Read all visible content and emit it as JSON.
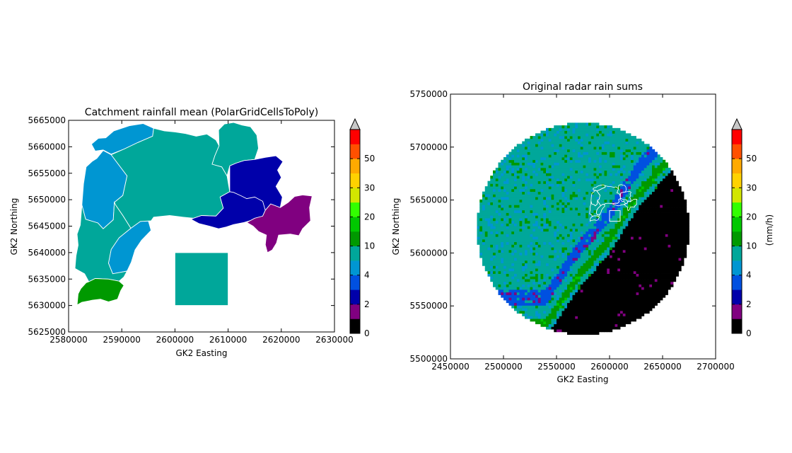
{
  "colormap": {
    "levels": [
      0,
      1,
      2,
      3,
      4,
      5,
      10,
      15,
      20,
      25,
      30,
      40,
      50,
      60
    ],
    "colors": [
      "#000000",
      "#800080",
      "#0000aa",
      "#0050e0",
      "#0096d2",
      "#00a79a",
      "#009900",
      "#00c800",
      "#32ff00",
      "#d2e600",
      "#ffd200",
      "#ffaa00",
      "#ff5000",
      "#ff0000",
      "#cc0000"
    ],
    "over_color": "#c8c8c8",
    "tick_labels": [
      "0",
      "2",
      "4",
      "10",
      "20",
      "30",
      "50"
    ]
  },
  "chart_data": [
    {
      "type": "choropleth",
      "title": "Catchment rainfall mean (PolarGridCellsToPoly)",
      "xlabel": "GK2 Easting",
      "ylabel": "GK2 Northing",
      "xlim": [
        2580000,
        2630000
      ],
      "ylim": [
        5625000,
        5665000
      ],
      "x_ticks": [
        "2580000",
        "2590000",
        "2600000",
        "2610000",
        "2620000",
        "2630000"
      ],
      "y_ticks": [
        "5625000",
        "5630000",
        "5635000",
        "5640000",
        "5645000",
        "5650000",
        "5655000",
        "5660000",
        "5665000"
      ],
      "catchments": [
        {
          "color": "#0096d2",
          "coords": [
            [
              2582800,
              5653000
            ],
            [
              2583300,
              5656200
            ],
            [
              2584500,
              5657300
            ],
            [
              2585300,
              5657800
            ],
            [
              2586500,
              5659300
            ],
            [
              2588000,
              5658500
            ],
            [
              2591000,
              5654500
            ],
            [
              2590200,
              5650800
            ],
            [
              2588600,
              5649500
            ],
            [
              2588400,
              5646200
            ],
            [
              2586500,
              5644500
            ],
            [
              2585500,
              5645600
            ],
            [
              2583200,
              5646300
            ],
            [
              2582500,
              5649000
            ]
          ]
        },
        {
          "color": "#0096d2",
          "coords": [
            [
              2584300,
              5660500
            ],
            [
              2585600,
              5661600
            ],
            [
              2587000,
              5661700
            ],
            [
              2588500,
              5663000
            ],
            [
              2590000,
              5663500
            ],
            [
              2591500,
              5664000
            ],
            [
              2594000,
              5664400
            ],
            [
              2596000,
              5663500
            ],
            [
              2595800,
              5662000
            ],
            [
              2593000,
              5660800
            ],
            [
              2590500,
              5659600
            ],
            [
              2588000,
              5658600
            ],
            [
              2586500,
              5659400
            ],
            [
              2585000,
              5659200
            ]
          ]
        },
        {
          "color": "#0096d2",
          "coords": [
            [
              2587500,
              5638000
            ],
            [
              2588000,
              5640600
            ],
            [
              2589500,
              5642800
            ],
            [
              2591700,
              5644600
            ],
            [
              2593500,
              5645900
            ],
            [
              2595000,
              5646000
            ],
            [
              2595500,
              5644200
            ],
            [
              2593700,
              5642300
            ],
            [
              2592500,
              5640500
            ],
            [
              2591800,
              5638200
            ],
            [
              2591000,
              5636500
            ],
            [
              2588300,
              5636000
            ]
          ]
        },
        {
          "color": "#00a79a",
          "coords": [
            [
              2596000,
              5663500
            ],
            [
              2598000,
              5663000
            ],
            [
              2600000,
              5662800
            ],
            [
              2602000,
              5662500
            ],
            [
              2604000,
              5662000
            ],
            [
              2606000,
              5662400
            ],
            [
              2607700,
              5661300
            ],
            [
              2608300,
              5660200
            ],
            [
              2607500,
              5658300
            ],
            [
              2607000,
              5656700
            ],
            [
              2608800,
              5656200
            ],
            [
              2609800,
              5654500
            ],
            [
              2610300,
              5651500
            ],
            [
              2608500,
              5650500
            ],
            [
              2609100,
              5648400
            ],
            [
              2607700,
              5646900
            ],
            [
              2605000,
              5647000
            ],
            [
              2603500,
              5646500
            ],
            [
              2601500,
              5646700
            ],
            [
              2599000,
              5647000
            ],
            [
              2596000,
              5646700
            ],
            [
              2595500,
              5646000
            ],
            [
              2593500,
              5645900
            ],
            [
              2591700,
              5644600
            ],
            [
              2590200,
              5647000
            ],
            [
              2588900,
              5648900
            ],
            [
              2588600,
              5649500
            ],
            [
              2590200,
              5650800
            ],
            [
              2591000,
              5654500
            ],
            [
              2588000,
              5658500
            ],
            [
              2590500,
              5659600
            ],
            [
              2593000,
              5660800
            ],
            [
              2595800,
              5662000
            ]
          ]
        },
        {
          "color": "#00a79a",
          "coords": [
            [
              2582500,
              5649000
            ],
            [
              2583200,
              5646300
            ],
            [
              2585500,
              5645600
            ],
            [
              2586500,
              5644500
            ],
            [
              2588400,
              5646200
            ],
            [
              2588600,
              5649500
            ],
            [
              2588900,
              5648900
            ],
            [
              2590200,
              5647000
            ],
            [
              2591700,
              5644600
            ],
            [
              2589500,
              5642800
            ],
            [
              2588000,
              5640600
            ],
            [
              2587500,
              5638000
            ],
            [
              2588300,
              5636000
            ],
            [
              2591000,
              5636500
            ],
            [
              2590400,
              5635400
            ],
            [
              2589500,
              5634600
            ],
            [
              2587500,
              5635000
            ],
            [
              2585000,
              5635100
            ],
            [
              2583800,
              5634500
            ],
            [
              2583000,
              5636000
            ],
            [
              2581200,
              5637000
            ],
            [
              2581400,
              5639400
            ],
            [
              2581800,
              5641400
            ],
            [
              2581600,
              5643500
            ],
            [
              2582200,
              5645200
            ]
          ]
        },
        {
          "color": "#00a79a",
          "coords": [
            [
              2608300,
              5660200
            ],
            [
              2608200,
              5663200
            ],
            [
              2609300,
              5664300
            ],
            [
              2611000,
              5664600
            ],
            [
              2612600,
              5664100
            ],
            [
              2614200,
              5663800
            ],
            [
              2615400,
              5662200
            ],
            [
              2615700,
              5659700
            ],
            [
              2615000,
              5657600
            ],
            [
              2613000,
              5657400
            ],
            [
              2611500,
              5656900
            ],
            [
              2610300,
              5656400
            ],
            [
              2609800,
              5654500
            ],
            [
              2608800,
              5656200
            ],
            [
              2607000,
              5656700
            ],
            [
              2607500,
              5658300
            ]
          ]
        },
        {
          "color": "#00a79a",
          "coords": [
            [
              2600000,
              5630000
            ],
            [
              2610000,
              5630000
            ],
            [
              2610000,
              5640000
            ],
            [
              2600000,
              5640000
            ]
          ]
        },
        {
          "color": "#0000aa",
          "coords": [
            [
              2610300,
              5656400
            ],
            [
              2611500,
              5656900
            ],
            [
              2613000,
              5657400
            ],
            [
              2615000,
              5657600
            ],
            [
              2617000,
              5658000
            ],
            [
              2619000,
              5658300
            ],
            [
              2620300,
              5657200
            ],
            [
              2619300,
              5655600
            ],
            [
              2620000,
              5654200
            ],
            [
              2619000,
              5652500
            ],
            [
              2620200,
              5650500
            ],
            [
              2619800,
              5648500
            ],
            [
              2618000,
              5649200
            ],
            [
              2617000,
              5648000
            ],
            [
              2616500,
              5646900
            ],
            [
              2615000,
              5646500
            ],
            [
              2613500,
              5648900
            ],
            [
              2612000,
              5648500
            ],
            [
              2610500,
              5650000
            ],
            [
              2610300,
              5651500
            ]
          ]
        },
        {
          "color": "#0000aa",
          "coords": [
            [
              2603000,
              5646300
            ],
            [
              2604500,
              5645500
            ],
            [
              2606500,
              5645000
            ],
            [
              2608200,
              5644500
            ],
            [
              2609500,
              5644800
            ],
            [
              2611000,
              5645300
            ],
            [
              2613000,
              5645700
            ],
            [
              2615000,
              5646300
            ],
            [
              2616500,
              5646900
            ],
            [
              2617000,
              5648000
            ],
            [
              2616500,
              5649700
            ],
            [
              2615000,
              5650500
            ],
            [
              2613500,
              5650200
            ],
            [
              2612500,
              5650700
            ],
            [
              2611000,
              5651400
            ],
            [
              2610300,
              5651500
            ],
            [
              2608500,
              5650500
            ],
            [
              2609100,
              5648400
            ],
            [
              2607700,
              5646900
            ],
            [
              2605000,
              5647000
            ],
            [
              2603500,
              5646500
            ]
          ]
        },
        {
          "color": "#800080",
          "coords": [
            [
              2613500,
              5645700
            ],
            [
              2614700,
              5645000
            ],
            [
              2615700,
              5644000
            ],
            [
              2617200,
              5643300
            ],
            [
              2617000,
              5641500
            ],
            [
              2617400,
              5640000
            ],
            [
              2618300,
              5640500
            ],
            [
              2619100,
              5641800
            ],
            [
              2619500,
              5643300
            ],
            [
              2621700,
              5643500
            ],
            [
              2623300,
              5643200
            ],
            [
              2624000,
              5644500
            ],
            [
              2625500,
              5646000
            ],
            [
              2625300,
              5648500
            ],
            [
              2625800,
              5650700
            ],
            [
              2624000,
              5650900
            ],
            [
              2622500,
              5650600
            ],
            [
              2621300,
              5649500
            ],
            [
              2619800,
              5648500
            ],
            [
              2618000,
              5649200
            ],
            [
              2617000,
              5648000
            ],
            [
              2616500,
              5646900
            ],
            [
              2615000,
              5646500
            ]
          ]
        },
        {
          "color": "#009900",
          "coords": [
            [
              2581800,
              5632200
            ],
            [
              2582300,
              5633200
            ],
            [
              2583300,
              5634300
            ],
            [
              2583800,
              5634500
            ],
            [
              2585000,
              5635100
            ],
            [
              2587500,
              5635000
            ],
            [
              2589500,
              5634600
            ],
            [
              2590400,
              5633800
            ],
            [
              2589800,
              5632800
            ],
            [
              2589200,
              5631200
            ],
            [
              2587500,
              5630700
            ],
            [
              2586000,
              5631200
            ],
            [
              2584500,
              5631000
            ],
            [
              2582500,
              5630600
            ],
            [
              2581600,
              5630100
            ]
          ]
        }
      ]
    },
    {
      "type": "heatmap",
      "title": "Original radar rain sums",
      "xlabel": "GK2 Easting",
      "ylabel": "GK2 Northing",
      "colorbar_label": "(mm/h)",
      "xlim": [
        2450000,
        2700000
      ],
      "ylim": [
        5500000,
        5750000
      ],
      "x_ticks": [
        "2450000",
        "2500000",
        "2550000",
        "2600000",
        "2650000",
        "2700000"
      ],
      "y_ticks": [
        "5500000",
        "5550000",
        "5600000",
        "5650000",
        "5700000",
        "5750000"
      ],
      "radar_site": [
        2575000,
        5623000
      ],
      "radius_m": 100000,
      "no_rain_boundary": [
        [
          2540000,
          5520000
        ],
        [
          2570000,
          5565000
        ],
        [
          2600000,
          5600000
        ],
        [
          2625000,
          5640000
        ],
        [
          2660000,
          5680000
        ],
        [
          2700000,
          5700000
        ]
      ],
      "value_bands": [
        {
          "offset_m": -60000,
          "value": 6
        },
        {
          "offset_m": -45000,
          "value": 3
        },
        {
          "offset_m": -30000,
          "value": 6
        },
        {
          "offset_m": -18000,
          "value": 12
        },
        {
          "offset_m": -8000,
          "value": 6
        },
        {
          "offset_m": 0,
          "value": 3
        }
      ],
      "catchment_box": [
        2600000,
        5630000,
        2610000,
        5640000
      ]
    }
  ]
}
